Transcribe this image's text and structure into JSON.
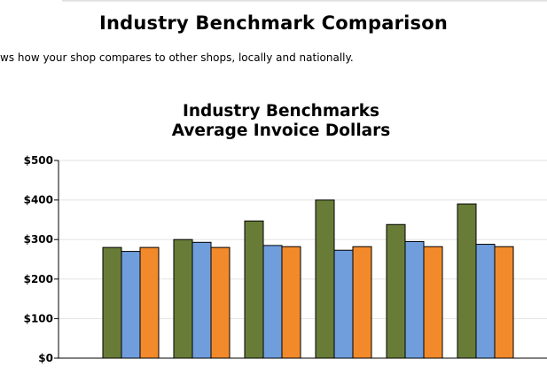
{
  "page": {
    "heading": "Industry Benchmark Comparison",
    "description": "ws how your shop compares to other shops, locally and nationally."
  },
  "chart_data": {
    "type": "bar",
    "title": [
      "Industry Benchmarks",
      "Average Invoice Dollars"
    ],
    "xlabel": "",
    "ylabel": "",
    "ylim": [
      0,
      500
    ],
    "yticks": [
      "$0",
      "$100",
      "$200",
      "$300",
      "$400",
      "$500"
    ],
    "grid": true,
    "categories": [
      "",
      "",
      "",
      "",
      "",
      ""
    ],
    "series": [
      {
        "color": "#687c38",
        "values": [
          280,
          300,
          347,
          400,
          338,
          390
        ]
      },
      {
        "color": "#709edd",
        "values": [
          270,
          293,
          285,
          273,
          295,
          288
        ]
      },
      {
        "color": "#f28a2b",
        "values": [
          280,
          280,
          282,
          282,
          282,
          282
        ]
      }
    ]
  }
}
